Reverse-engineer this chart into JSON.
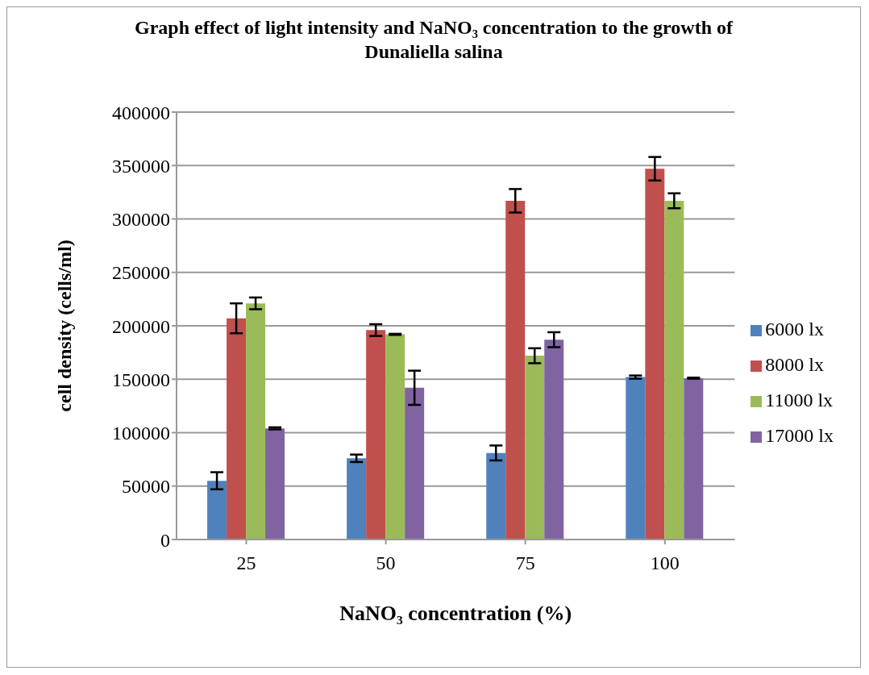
{
  "chart_data": {
    "type": "bar",
    "title": "Graph effect of light intensity and NaNO₃ concentration to the growth of Dunaliella salina",
    "xlabel": "NaNO₃ concentration (%)",
    "ylabel": "cell density (cells/ml)",
    "categories": [
      "25",
      "50",
      "75",
      "100"
    ],
    "series": [
      {
        "name": "6000 lx",
        "color": "#4f81bd",
        "values": [
          55000,
          76000,
          81000,
          152000
        ],
        "errors": [
          8000,
          3500,
          7000,
          1500
        ]
      },
      {
        "name": "8000 lx",
        "color": "#c0504d",
        "values": [
          207000,
          196000,
          317000,
          347000
        ],
        "errors": [
          14000,
          5500,
          11000,
          11000
        ]
      },
      {
        "name": "11000 lx",
        "color": "#9bbb59",
        "values": [
          221000,
          192000,
          172000,
          317000
        ],
        "errors": [
          5500,
          500,
          7000,
          7000
        ]
      },
      {
        "name": "17000 lx",
        "color": "#8064a2",
        "values": [
          104000,
          142000,
          187000,
          151000
        ],
        "errors": [
          1000,
          16000,
          7000,
          500
        ]
      }
    ],
    "ylim": [
      0,
      400000
    ],
    "yticks": [
      0,
      50000,
      100000,
      150000,
      200000,
      250000,
      300000,
      350000,
      400000
    ],
    "grid": "y",
    "legend": "right"
  }
}
